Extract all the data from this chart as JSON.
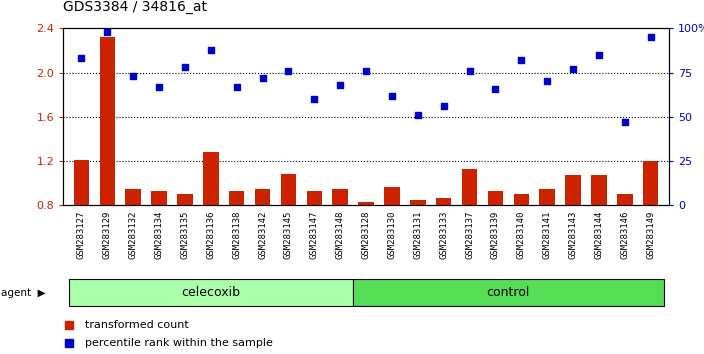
{
  "title": "GDS3384 / 34816_at",
  "samples": [
    "GSM283127",
    "GSM283129",
    "GSM283132",
    "GSM283134",
    "GSM283135",
    "GSM283136",
    "GSM283138",
    "GSM283142",
    "GSM283145",
    "GSM283147",
    "GSM283148",
    "GSM283128",
    "GSM283130",
    "GSM283131",
    "GSM283133",
    "GSM283137",
    "GSM283139",
    "GSM283140",
    "GSM283141",
    "GSM283143",
    "GSM283144",
    "GSM283146",
    "GSM283149"
  ],
  "bar_values": [
    1.21,
    2.32,
    0.95,
    0.93,
    0.9,
    1.28,
    0.93,
    0.95,
    1.08,
    0.93,
    0.95,
    0.83,
    0.97,
    0.85,
    0.87,
    1.13,
    0.93,
    0.9,
    0.95,
    1.07,
    1.07,
    0.9,
    1.2
  ],
  "dot_values": [
    83,
    98,
    73,
    67,
    78,
    88,
    67,
    72,
    76,
    60,
    68,
    76,
    62,
    51,
    56,
    76,
    66,
    82,
    70,
    77,
    85,
    47,
    95
  ],
  "celecoxib_count": 11,
  "control_count": 12,
  "ylim_left": [
    0.8,
    2.4
  ],
  "ylim_right": [
    0,
    100
  ],
  "yticks_left": [
    0.8,
    1.2,
    1.6,
    2.0,
    2.4
  ],
  "yticks_right": [
    0,
    25,
    50,
    75,
    100
  ],
  "hlines": [
    1.2,
    1.6,
    2.0
  ],
  "bar_color": "#cc2200",
  "dot_color": "#0000cc",
  "celecoxib_color": "#aaffaa",
  "control_color": "#55dd55",
  "agent_label": "agent",
  "celecoxib_label": "celecoxib",
  "control_label": "control",
  "legend_bar_label": "transformed count",
  "legend_dot_label": "percentile rank within the sample",
  "xtick_bg": "#c8c8c8",
  "plot_bg": "#ffffff"
}
